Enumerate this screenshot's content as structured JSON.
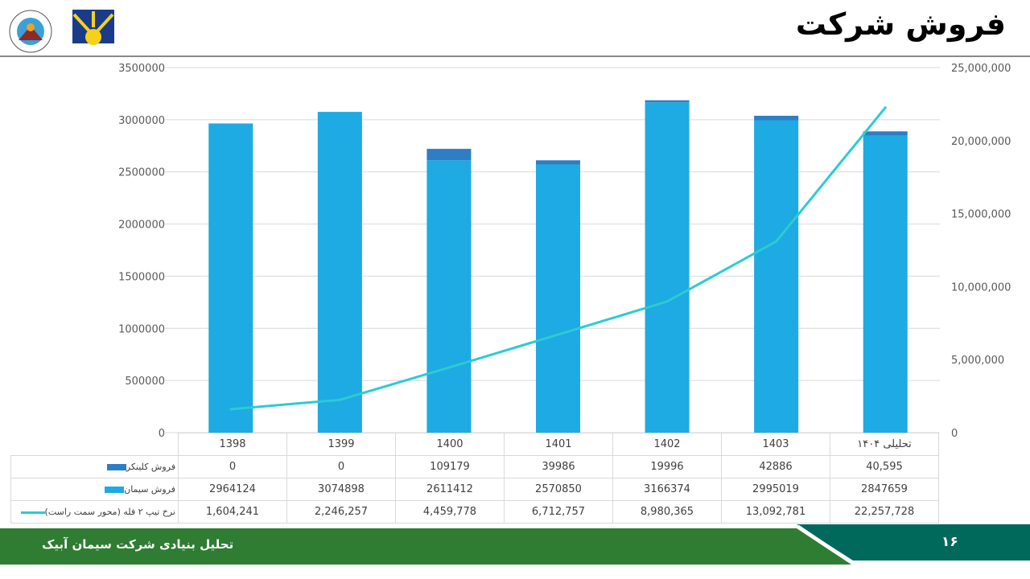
{
  "header": {
    "title": "فروش شرکت"
  },
  "footer": {
    "text": "تحلیل بنیادی شرکت سیمان آبیک",
    "page": "۱۶"
  },
  "colors": {
    "clinker": "#2e7dc5",
    "cement": "#1eaae2",
    "rate": "#2ccbd3",
    "footer_green": "#2e7d32",
    "footer_teal": "#00695c"
  },
  "chart_data": {
    "type": "bar",
    "stacked": true,
    "categories": [
      "1398",
      "1399",
      "1400",
      "1401",
      "1402",
      "1403",
      "تحلیلی ۱۴۰۴"
    ],
    "series": [
      {
        "name": "فروش کلینکر",
        "type": "bar",
        "axis": "left",
        "values": [
          0,
          0,
          109179,
          39986,
          19996,
          42886,
          40595
        ],
        "labels": [
          "0",
          "0",
          "109179",
          "39986",
          "19996",
          "42886",
          "40,595"
        ]
      },
      {
        "name": "فروش سیمان",
        "type": "bar",
        "axis": "left",
        "values": [
          2964124,
          3074898,
          2611412,
          2570850,
          3166374,
          2995019,
          2847659
        ],
        "labels": [
          "2964124",
          "3074898",
          "2611412",
          "2570850",
          "3166374",
          "2995019",
          "2847659"
        ]
      },
      {
        "name": "نرخ تیپ ۲ فله (محور سمت راست)",
        "type": "line",
        "axis": "right",
        "values": [
          1604241,
          2246257,
          4459778,
          6712757,
          8980365,
          13092781,
          22257728
        ],
        "labels": [
          "1,604,241",
          "2,246,257",
          "4,459,778",
          "6,712,757",
          "8,980,365",
          "13,092,781",
          "22,257,728"
        ]
      }
    ],
    "left_axis": {
      "ylim": [
        0,
        3500000
      ],
      "ticks": [
        "0",
        "500000",
        "1000000",
        "1500000",
        "2000000",
        "2500000",
        "3000000",
        "3500000"
      ]
    },
    "right_axis": {
      "ylim": [
        0,
        25000000
      ],
      "ticks": [
        "0",
        "5,000,000",
        "10,000,000",
        "15,000,000",
        "20,000,000",
        "25,000,000"
      ]
    },
    "grid": true,
    "legend": "data-table"
  }
}
